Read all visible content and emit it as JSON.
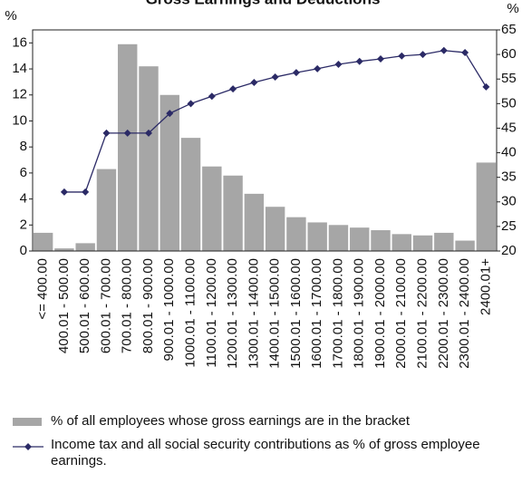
{
  "chart_data": {
    "type": "bar",
    "title": "Gross Earnings and Deductions",
    "y_label": "%",
    "y2_label": "%",
    "categories": [
      "<= 400.00",
      "400.01 - 500.00",
      "500.01 - 600.00",
      "600.01 - 700.00",
      "700.01 - 800.00",
      "800.01 - 900.00",
      "900.01 - 1000.00",
      "1000.01 - 1100.00",
      "1100.01 - 1200.00",
      "1200.01 - 1300.00",
      "1300.01 - 1400.00",
      "1400.01 - 1500.00",
      "1500.01 - 1600.00",
      "1600.01 - 1700.00",
      "1700.01 - 1800.00",
      "1800.01 - 1900.00",
      "1900.01 - 2000.00",
      "2000.01 - 2100.00",
      "2100.01 - 2200.00",
      "2200.01 - 2300.00",
      "2300.01 - 2400.00",
      "2400.01+"
    ],
    "series": [
      {
        "name": "% of all employees whose gross earnings are in the bracket",
        "type": "bar",
        "color": "#a6a6a6",
        "values": [
          1.4,
          0.2,
          0.6,
          6.3,
          15.9,
          14.2,
          12.0,
          8.7,
          6.5,
          5.8,
          4.4,
          3.4,
          2.6,
          2.2,
          2.0,
          1.8,
          1.6,
          1.3,
          1.2,
          1.4,
          0.8,
          6.8
        ]
      },
      {
        "name": "Income tax and all social security  contributions as % of gross employee earnings.",
        "type": "line",
        "axis": "y2",
        "color": "#2b2a66",
        "values": [
          null,
          32,
          32,
          44,
          44,
          44,
          48,
          50,
          51.5,
          53,
          54.3,
          55.4,
          56.3,
          57.1,
          58,
          58.6,
          59.1,
          59.7,
          60,
          60.8,
          60.4,
          53.4
        ]
      }
    ],
    "ylim": [
      0,
      17
    ],
    "yticks": [
      0,
      2,
      4,
      6,
      8,
      10,
      12,
      14,
      16
    ],
    "y2lim": [
      20,
      65
    ],
    "y2ticks": [
      20,
      25,
      30,
      35,
      40,
      45,
      50,
      55,
      60,
      65
    ],
    "grid": false
  }
}
